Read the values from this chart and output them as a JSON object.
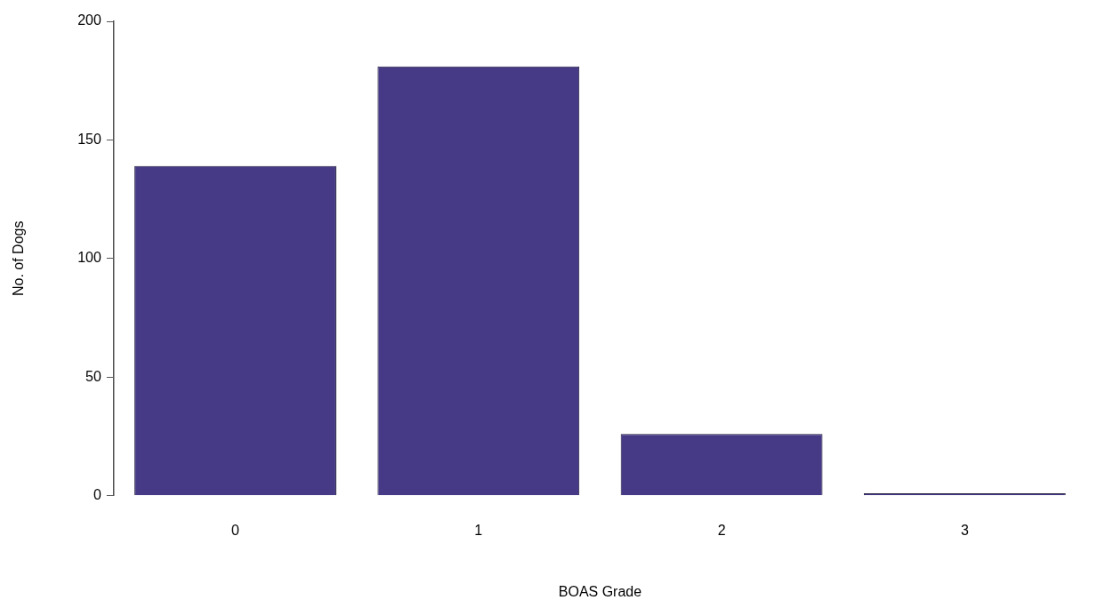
{
  "chart_data": {
    "type": "bar",
    "xlabel": "BOAS Grade",
    "ylabel": "No. of Dogs",
    "categories": [
      "0",
      "1",
      "2",
      "3"
    ],
    "values": [
      139,
      181,
      26,
      1
    ],
    "color": "#463a87",
    "ylim": [
      0,
      200
    ],
    "yticks": [
      0,
      50,
      100,
      150,
      200
    ],
    "grid": false,
    "legend": false
  }
}
